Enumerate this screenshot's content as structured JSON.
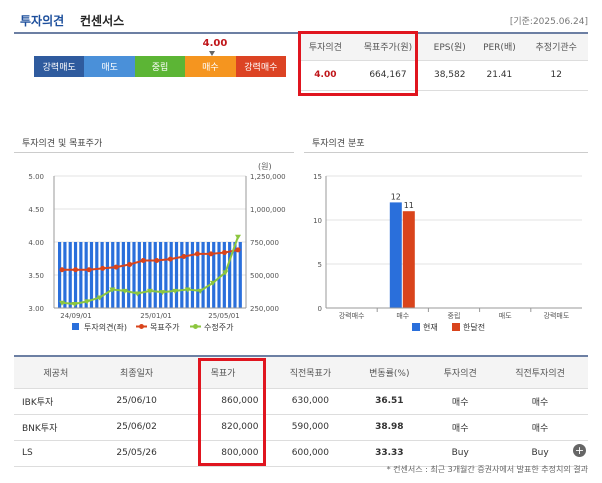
{
  "header": {
    "title": "투자의견",
    "subtitle": "컨센서스",
    "date": "[기준:2025.06.24]"
  },
  "scale": {
    "value": "4.00",
    "items": [
      {
        "label": "강력매도",
        "color": "#2f5b9e"
      },
      {
        "label": "매도",
        "color": "#4a90d9"
      },
      {
        "label": "중립",
        "color": "#5cb535"
      },
      {
        "label": "매수",
        "color": "#f5951f"
      },
      {
        "label": "강력매수",
        "color": "#dc4323"
      }
    ]
  },
  "consensus": {
    "headers": [
      "투자의견",
      "목표주가(원)",
      "EPS(원)",
      "PER(배)",
      "추정기관수"
    ],
    "values": [
      "4.00",
      "664,167",
      "38,582",
      "21.41",
      "12"
    ]
  },
  "panels": {
    "left_title": "투자의견 및 목표주가",
    "right_title": "투자의견 분포"
  },
  "chart_data": [
    {
      "type": "bar",
      "unit_label": "(원)",
      "x_tick_labels": [
        "24/09/01",
        "25/01/01",
        "25/05/01"
      ],
      "y_left_ticks": [
        "5.00",
        "4.50",
        "4.00",
        "3.50",
        "3.00"
      ],
      "y_right_ticks": [
        "1,250,000",
        "1,000,000",
        "750,000",
        "500,000",
        "250,000"
      ],
      "ylim_left": [
        3.0,
        5.0
      ],
      "ylim_right": [
        250000,
        1250000
      ],
      "series": [
        {
          "name": "투자의견(좌)",
          "kind": "bar",
          "color": "#2a6fdb",
          "values": [
            4.0,
            4.0,
            4.0,
            4.0,
            4.0,
            4.0,
            4.0,
            4.0,
            4.0,
            4.0,
            4.0,
            4.0,
            4.0,
            4.0,
            4.0,
            4.0,
            4.0,
            4.0,
            4.0,
            4.0,
            4.0,
            4.0,
            4.0,
            4.0,
            4.0,
            4.0,
            4.0,
            4.0,
            4.0,
            4.0,
            4.0,
            4.0,
            4.0,
            4.0,
            4.0
          ]
        },
        {
          "name": "목표주가",
          "kind": "line",
          "color": "#d9441c",
          "values": [
            540000,
            540000,
            540000,
            550000,
            560000,
            580000,
            610000,
            610000,
            620000,
            640000,
            660000,
            660000,
            670000,
            690000
          ]
        },
        {
          "name": "수정주가",
          "kind": "line",
          "color": "#8cc63f",
          "values": [
            290000,
            280000,
            300000,
            330000,
            390000,
            380000,
            360000,
            380000,
            370000,
            380000,
            390000,
            380000,
            440000,
            520000,
            790000
          ]
        }
      ]
    },
    {
      "type": "bar",
      "categories": [
        "강력매수",
        "매수",
        "중립",
        "매도",
        "강력매도"
      ],
      "y_ticks": [
        "15",
        "10",
        "5",
        "0"
      ],
      "ylim": [
        0,
        15
      ],
      "series": [
        {
          "name": "현재",
          "color": "#2a6fdb",
          "values": [
            0,
            12,
            0,
            0,
            0
          ]
        },
        {
          "name": "한달전",
          "color": "#d9441c",
          "values": [
            0,
            11,
            0,
            0,
            0
          ]
        }
      ]
    }
  ],
  "details": {
    "headers": [
      "제공처",
      "최종일자",
      "목표가",
      "직전목표가",
      "변동률(%)",
      "투자의견",
      "직전투자의견"
    ],
    "rows": [
      [
        "IBK투자",
        "25/06/10",
        "860,000",
        "630,000",
        "36.51",
        "매수",
        "매수"
      ],
      [
        "BNK투자",
        "25/06/02",
        "820,000",
        "590,000",
        "38.98",
        "매수",
        "매수"
      ],
      [
        "LS",
        "25/05/26",
        "800,000",
        "600,000",
        "33.33",
        "Buy",
        "Buy"
      ]
    ]
  },
  "footnote": "* 컨센서스 : 최근 3개월간 증권사에서 발표한 추정치의 결과"
}
